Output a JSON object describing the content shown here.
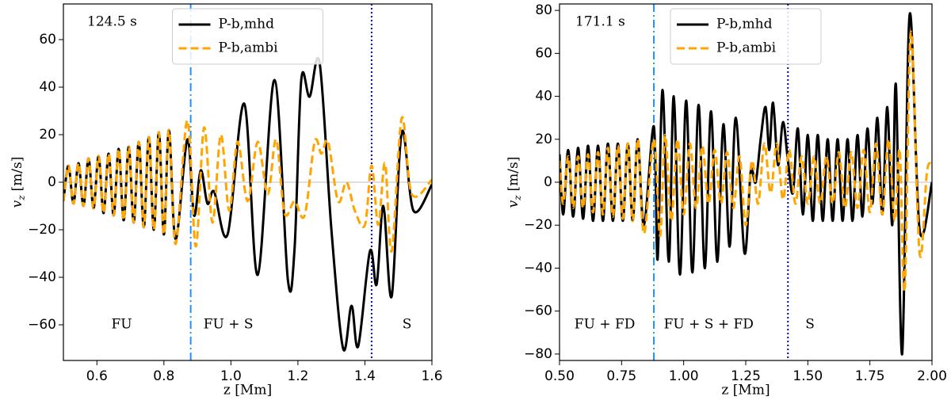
{
  "chart_data": [
    {
      "type": "line",
      "annotation": "124.5 s",
      "xlabel": "z [Mm]",
      "ylabel_var": "v",
      "ylabel_sub": "z",
      "ylabel_unit": "[m/s]",
      "legend": "upper center",
      "xlim": [
        0.5,
        1.6
      ],
      "ylim": [
        -75,
        75
      ],
      "xticks": [
        0.6,
        0.8,
        {
          "value": 1,
          "label": "1.0"
        },
        1.2,
        1.4,
        1.6
      ],
      "yticks": [
        {
          "value": -60,
          "label": "−60"
        },
        {
          "value": -40,
          "label": "−40"
        },
        {
          "value": -20,
          "label": "−20"
        },
        0,
        20,
        40,
        60
      ],
      "vlines": [
        {
          "x": 0.88,
          "style": "dashdot",
          "color": "#1e90ff"
        },
        {
          "x": 1.42,
          "style": "dotted",
          "color": "#0000cd"
        }
      ],
      "regions": [
        "FU",
        "FU + S",
        "S"
      ],
      "series": [
        {
          "name": "P-b,mhd",
          "color": "#000000",
          "style": "solid",
          "x": [
            0.5,
            0.515,
            0.53,
            0.545,
            0.56,
            0.575,
            0.59,
            0.605,
            0.62,
            0.635,
            0.65,
            0.665,
            0.68,
            0.695,
            0.71,
            0.725,
            0.74,
            0.755,
            0.77,
            0.785,
            0.8,
            0.815,
            0.835,
            0.87,
            0.89,
            0.91,
            0.93,
            0.95,
            0.99,
            1.04,
            1.08,
            1.13,
            1.17,
            1.19,
            1.21,
            1.235,
            1.265,
            1.3,
            1.335,
            1.36,
            1.38,
            1.415,
            1.435,
            1.455,
            1.48,
            1.51,
            1.545,
            1.6
          ],
          "values": [
            -8,
            7,
            -9,
            8,
            -10,
            10,
            -11,
            11,
            -13,
            12,
            -14,
            14,
            -16,
            15,
            -17,
            17,
            -19,
            19,
            -20,
            21,
            -22,
            22,
            -24,
            18,
            -14,
            5,
            -9,
            -4,
            -22,
            33,
            -39,
            43,
            -41,
            -28,
            43,
            36,
            50,
            -20,
            -70,
            -52,
            -69,
            -29,
            -43,
            -10,
            -48,
            21,
            -12,
            -1
          ]
        },
        {
          "name": "P-b,ambi",
          "color": "#ffa500",
          "style": "dashed",
          "x": [
            0.5,
            0.515,
            0.53,
            0.545,
            0.56,
            0.575,
            0.59,
            0.605,
            0.62,
            0.635,
            0.65,
            0.665,
            0.68,
            0.695,
            0.71,
            0.725,
            0.74,
            0.755,
            0.77,
            0.785,
            0.8,
            0.815,
            0.835,
            0.87,
            0.895,
            0.92,
            0.945,
            0.97,
            0.995,
            1.02,
            1.05,
            1.08,
            1.11,
            1.135,
            1.16,
            1.19,
            1.22,
            1.25,
            1.27,
            1.29,
            1.32,
            1.345,
            1.37,
            1.4,
            1.42,
            1.44,
            1.46,
            1.48,
            1.51,
            1.54,
            1.6
          ],
          "values": [
            -8,
            7,
            -9,
            8,
            -10,
            10,
            -11,
            11,
            -13,
            12,
            -14,
            14,
            -16,
            15,
            -17,
            17,
            -19,
            19,
            -20,
            21,
            -22,
            22,
            -26,
            26,
            -27,
            23,
            -17,
            20,
            -12,
            17,
            -8,
            17,
            -5,
            18,
            -13,
            -8,
            -14,
            17,
            12,
            17,
            -8,
            0,
            -12,
            -18,
            7,
            -18,
            8,
            -29,
            27,
            -5,
            1
          ]
        }
      ]
    },
    {
      "type": "line",
      "annotation": "171.1 s",
      "xlabel": "z [Mm]",
      "ylabel_var": "v",
      "ylabel_sub": "z",
      "ylabel_unit": "[m/s]",
      "legend": "upper center",
      "xlim": [
        0.5,
        2.0
      ],
      "ylim": [
        -83,
        83
      ],
      "xticks": [
        {
          "value": 0.5,
          "label": "0.50"
        },
        {
          "value": 0.75,
          "label": "0.75"
        },
        {
          "value": 1,
          "label": "1.00"
        },
        {
          "value": 1.25,
          "label": "1.25"
        },
        {
          "value": 1.5,
          "label": "1.50"
        },
        {
          "value": 1.75,
          "label": "1.75"
        },
        {
          "value": 2,
          "label": "2.00"
        }
      ],
      "yticks": [
        {
          "value": -80,
          "label": "−80"
        },
        {
          "value": -60,
          "label": "−60"
        },
        {
          "value": -40,
          "label": "−40"
        },
        {
          "value": -20,
          "label": "−20"
        },
        0,
        20,
        40,
        60,
        80
      ],
      "vlines": [
        {
          "x": 0.88,
          "style": "dashdot",
          "color": "#1e90ff"
        },
        {
          "x": 1.42,
          "style": "dotted",
          "color": "#0000cd"
        }
      ],
      "regions": [
        "FU + FD",
        "FU + S + FD",
        "S"
      ],
      "series": [
        {
          "name": "P-b,mhd",
          "color": "#000000",
          "style": "solid",
          "x": [
            0.5,
            0.515,
            0.535,
            0.555,
            0.575,
            0.595,
            0.615,
            0.635,
            0.655,
            0.675,
            0.695,
            0.715,
            0.735,
            0.755,
            0.775,
            0.795,
            0.815,
            0.84,
            0.88,
            0.895,
            0.915,
            0.94,
            0.96,
            0.985,
            1.01,
            1.035,
            1.06,
            1.085,
            1.11,
            1.135,
            1.16,
            1.185,
            1.21,
            1.245,
            1.27,
            1.29,
            1.31,
            1.33,
            1.345,
            1.36,
            1.38,
            1.4,
            1.42,
            1.44,
            1.46,
            1.48,
            1.5,
            1.52,
            1.54,
            1.56,
            1.58,
            1.6,
            1.62,
            1.64,
            1.66,
            1.68,
            1.7,
            1.72,
            1.74,
            1.76,
            1.78,
            1.8,
            1.82,
            1.84,
            1.855,
            1.88,
            1.91,
            1.95,
            2.0
          ],
          "values": [
            13,
            -15,
            15,
            -16,
            16,
            -17,
            17,
            -18,
            17,
            -18,
            18,
            -18,
            18,
            -18,
            18,
            -18,
            20,
            -20,
            26,
            -36,
            43,
            -37,
            40,
            -43,
            38,
            -42,
            36,
            -40,
            33,
            -37,
            27,
            -30,
            30,
            -33,
            5,
            0,
            20,
            35,
            15,
            37,
            8,
            28,
            10,
            -5,
            25,
            -15,
            22,
            -18,
            22,
            -18,
            20,
            -18,
            20,
            -18,
            20,
            -18,
            22,
            -16,
            25,
            -10,
            30,
            -15,
            35,
            -20,
            45,
            -80,
            78,
            -22,
            0
          ]
        },
        {
          "name": "P-b,ambi",
          "color": "#ffa500",
          "style": "dashed",
          "x": [
            0.5,
            0.515,
            0.535,
            0.555,
            0.575,
            0.595,
            0.615,
            0.635,
            0.655,
            0.675,
            0.695,
            0.715,
            0.735,
            0.755,
            0.775,
            0.795,
            0.815,
            0.84,
            0.88,
            0.905,
            0.925,
            0.95,
            0.975,
            1.0,
            1.025,
            1.05,
            1.075,
            1.1,
            1.125,
            1.15,
            1.175,
            1.2,
            1.225,
            1.25,
            1.275,
            1.3,
            1.325,
            1.35,
            1.375,
            1.4,
            1.425,
            1.45,
            1.475,
            1.5,
            1.525,
            1.55,
            1.575,
            1.6,
            1.625,
            1.65,
            1.675,
            1.7,
            1.725,
            1.75,
            1.775,
            1.8,
            1.825,
            1.85,
            1.87,
            1.89,
            1.915,
            1.95,
            1.98,
            2.0
          ],
          "values": [
            10,
            -10,
            12,
            -12,
            12,
            -12,
            13,
            -14,
            14,
            -15,
            16,
            -16,
            17,
            -17,
            18,
            -18,
            20,
            -24,
            20,
            -25,
            22,
            -18,
            20,
            -15,
            18,
            -12,
            17,
            -10,
            15,
            -10,
            14,
            -12,
            12,
            -20,
            10,
            -10,
            18,
            -5,
            18,
            -8,
            15,
            -10,
            12,
            -10,
            12,
            -10,
            12,
            -10,
            14,
            -12,
            14,
            -12,
            15,
            -14,
            18,
            -15,
            20,
            -18,
            15,
            -50,
            70,
            -33,
            5,
            8
          ]
        }
      ]
    }
  ]
}
